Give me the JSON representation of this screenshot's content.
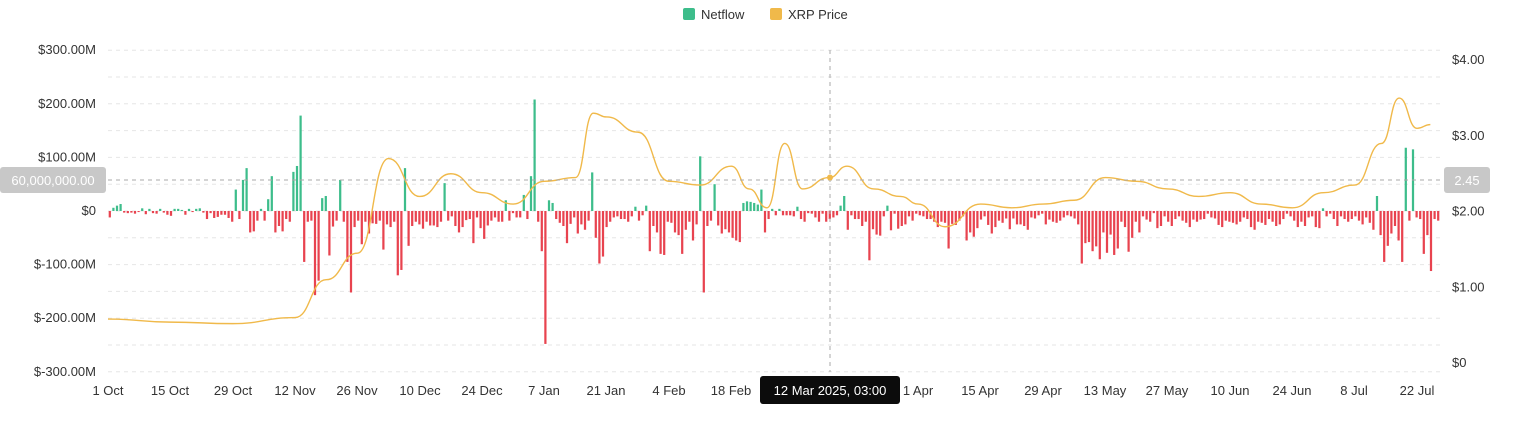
{
  "chart_data": {
    "type": "bar",
    "legend": [
      {
        "name": "Netflow",
        "color": "#3dbd8b"
      },
      {
        "name": "XRP Price",
        "color": "#f0b94a"
      }
    ],
    "legend_position": "top-center",
    "colors": {
      "positive": "#3dbd8b",
      "negative": "#e8434f",
      "price": "#f0b94a"
    },
    "x_tick_labels": [
      "1 Oct",
      "15 Oct",
      "29 Oct",
      "12 Nov",
      "26 Nov",
      "10 Dec",
      "24 Dec",
      "7 Jan",
      "21 Jan",
      "4 Feb",
      "18 Feb",
      "12 Mar 2025, 03:00",
      "1 Apr",
      "15 Apr",
      "29 Apr",
      "13 May",
      "27 May",
      "10 Jun",
      "24 Jun",
      "8 Jul",
      "22 Jul"
    ],
    "y_left_ticks": [
      "$-300.00M",
      "$-200.00M",
      "$-100.00M",
      "$0",
      "$100.00M",
      "$200.00M",
      "$300.00M"
    ],
    "y_left_range": [
      -300,
      300
    ],
    "y_right_ticks": [
      "$0",
      "$1.00",
      "$2.00",
      "$3.00",
      "$4.00"
    ],
    "y_right_range": [
      0,
      4.3
    ],
    "crosshair": {
      "label": "12 Mar 2025, 03:00",
      "left_value_label": "60,000,000.00",
      "right_value_label": "2.45"
    },
    "grid": true,
    "netflow_millions": [
      -12,
      6,
      10,
      13,
      -3,
      -4,
      -3,
      -5,
      -2,
      5,
      -6,
      4,
      -4,
      -5,
      4,
      -3,
      -7,
      -9,
      4,
      4,
      2,
      -7,
      4,
      -2,
      4,
      5,
      -3,
      -15,
      -4,
      -13,
      -11,
      -7,
      -7,
      -13,
      -20,
      40,
      -15,
      58,
      80,
      -40,
      -38,
      -18,
      4,
      -18,
      22,
      65,
      -40,
      -28,
      -38,
      -15,
      -20,
      73,
      84,
      178,
      -95,
      -20,
      -18,
      -157,
      -130,
      24,
      28,
      -83,
      -29,
      -18,
      58,
      -20,
      -95,
      -152,
      -30,
      -18,
      -62,
      -20,
      -42,
      -23,
      -24,
      -18,
      -72,
      -25,
      -30,
      -20,
      -120,
      -110,
      80,
      -65,
      -28,
      -20,
      -25,
      -33,
      -20,
      -27,
      -27,
      -30,
      -20,
      52,
      -18,
      -10,
      -28,
      -40,
      -30,
      -17,
      -15,
      -60,
      -12,
      -32,
      -52,
      -27,
      -18,
      -12,
      -20,
      -20,
      20,
      -18,
      -4,
      -12,
      -12,
      30,
      -15,
      65,
      208,
      -20,
      -75,
      -248,
      20,
      15,
      -15,
      -22,
      -28,
      -60,
      -24,
      -12,
      -42,
      -25,
      -35,
      -18,
      72,
      -50,
      -98,
      -85,
      -30,
      -20,
      -12,
      -10,
      -15,
      -15,
      -20,
      -10,
      8,
      -18,
      -8,
      10,
      -75,
      -28,
      -40,
      -80,
      -82,
      -20,
      -22,
      -40,
      -45,
      -80,
      -35,
      -20,
      -55,
      -25,
      102,
      -152,
      -28,
      -18,
      50,
      -27,
      -42,
      -34,
      -40,
      -50,
      -55,
      -58,
      15,
      18,
      17,
      15,
      12,
      40,
      -40,
      -15,
      4,
      -8,
      4,
      -8,
      -8,
      -8,
      -10,
      8,
      -15,
      -20,
      -4,
      -5,
      -12,
      -20,
      -5,
      -20,
      -15,
      -12,
      -8,
      10,
      28,
      -35,
      -8,
      -15,
      -15,
      -28,
      -20,
      -92,
      -34,
      -44,
      -46,
      -10,
      10,
      -36,
      -5,
      -33,
      -28,
      -25,
      -10,
      -18,
      -5,
      -8,
      -10,
      -15,
      -15,
      -20,
      -30,
      -20,
      -22,
      -70,
      -24,
      -26,
      -18,
      -10,
      -55,
      -40,
      -48,
      -32,
      -16,
      -10,
      -26,
      -42,
      -30,
      -18,
      -22,
      -14,
      -34,
      -14,
      -25,
      -25,
      -28,
      -35,
      -12,
      -14,
      -8,
      -5,
      -25,
      -16,
      -20,
      -22,
      -18,
      -12,
      -8,
      -10,
      -14,
      -25,
      -98,
      -60,
      -58,
      -75,
      -66,
      -90,
      -40,
      -78,
      -44,
      -82,
      -70,
      -20,
      -30,
      -76,
      -50,
      -20,
      -40,
      -10,
      -16,
      -20,
      -4,
      -32,
      -28,
      -10,
      -20,
      -28,
      -15,
      -10,
      -18,
      -22,
      -30,
      -16,
      -20,
      -16,
      -15,
      -5,
      -12,
      -14,
      -26,
      -30,
      -18,
      -20,
      -22,
      -25,
      -20,
      -12,
      -15,
      -30,
      -35,
      -20,
      -22,
      -26,
      -15,
      -20,
      -28,
      -25,
      -15,
      -5,
      -10,
      -18,
      -30,
      -20,
      -28,
      -12,
      -10,
      -30,
      -32,
      5,
      -10,
      -5,
      -15,
      -28,
      -10,
      -15,
      -20,
      -15,
      -10,
      -18,
      -25,
      -12,
      -22,
      -35,
      28,
      -45,
      -95,
      -65,
      -42,
      -28,
      -55,
      -95,
      118,
      -18,
      115,
      -12,
      -15,
      -80,
      -45,
      -112,
      -15,
      -18
    ],
    "price_points": [
      [
        "1 Oct",
        0.58
      ],
      [
        "15 Oct",
        0.54
      ],
      [
        "29 Oct",
        0.52
      ],
      [
        "12 Nov",
        0.6
      ],
      [
        "19 Nov",
        1.1
      ],
      [
        "26 Nov",
        1.45
      ],
      [
        "3 Dec",
        2.7
      ],
      [
        "10 Dec",
        2.2
      ],
      [
        "17 Dec",
        2.5
      ],
      [
        "24 Dec",
        2.25
      ],
      [
        "31 Dec",
        2.1
      ],
      [
        "7 Jan",
        2.4
      ],
      [
        "14 Jan",
        2.45
      ],
      [
        "18 Jan",
        3.3
      ],
      [
        "21 Jan",
        3.25
      ],
      [
        "28 Jan",
        3.05
      ],
      [
        "4 Feb",
        2.4
      ],
      [
        "11 Feb",
        2.35
      ],
      [
        "18 Feb",
        2.6
      ],
      [
        "22 Feb",
        2.3
      ],
      [
        "26 Feb",
        2.05
      ],
      [
        "2 Mar",
        2.9
      ],
      [
        "6 Mar",
        2.3
      ],
      [
        "12 Mar",
        2.45
      ],
      [
        "16 Mar",
        2.6
      ],
      [
        "22 Mar",
        2.3
      ],
      [
        "28 Mar",
        2.2
      ],
      [
        "1 Apr",
        2.1
      ],
      [
        "7 Apr",
        1.8
      ],
      [
        "15 Apr",
        2.1
      ],
      [
        "22 Apr",
        2.05
      ],
      [
        "29 Apr",
        2.1
      ],
      [
        "6 May",
        2.15
      ],
      [
        "13 May",
        2.45
      ],
      [
        "20 May",
        2.4
      ],
      [
        "27 May",
        2.3
      ],
      [
        "3 Jun",
        2.2
      ],
      [
        "10 Jun",
        2.25
      ],
      [
        "17 Jun",
        2.1
      ],
      [
        "24 Jun",
        2.05
      ],
      [
        "1 Jul",
        2.25
      ],
      [
        "8 Jul",
        2.35
      ],
      [
        "14 Jul",
        2.9
      ],
      [
        "18 Jul",
        3.5
      ],
      [
        "22 Jul",
        3.1
      ],
      [
        "25 Jul",
        3.15
      ]
    ]
  }
}
